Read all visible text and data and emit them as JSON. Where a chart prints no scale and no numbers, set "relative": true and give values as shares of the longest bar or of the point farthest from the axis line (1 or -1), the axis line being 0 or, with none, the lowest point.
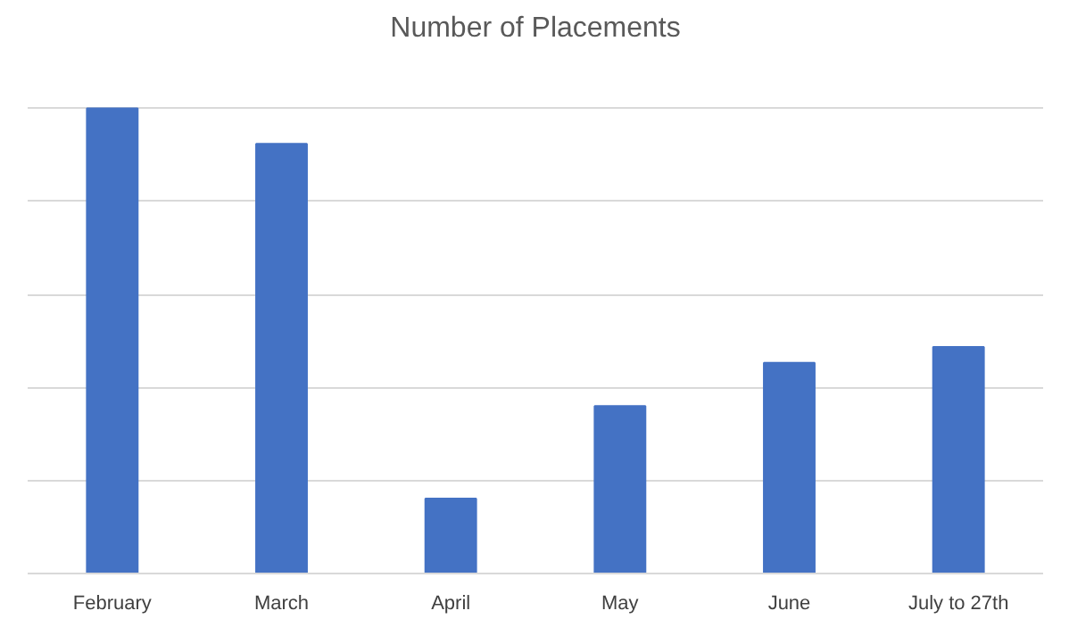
{
  "chart_data": {
    "type": "bar",
    "title": "Number of Placements",
    "categories": [
      "February",
      "March",
      "April",
      "May",
      "June",
      "July to 27th"
    ],
    "values": [
      1,
      0.924,
      0.161,
      0.36,
      0.453,
      0.487
    ],
    "color": "#4472c4",
    "relative": true,
    "grid": "y"
  }
}
